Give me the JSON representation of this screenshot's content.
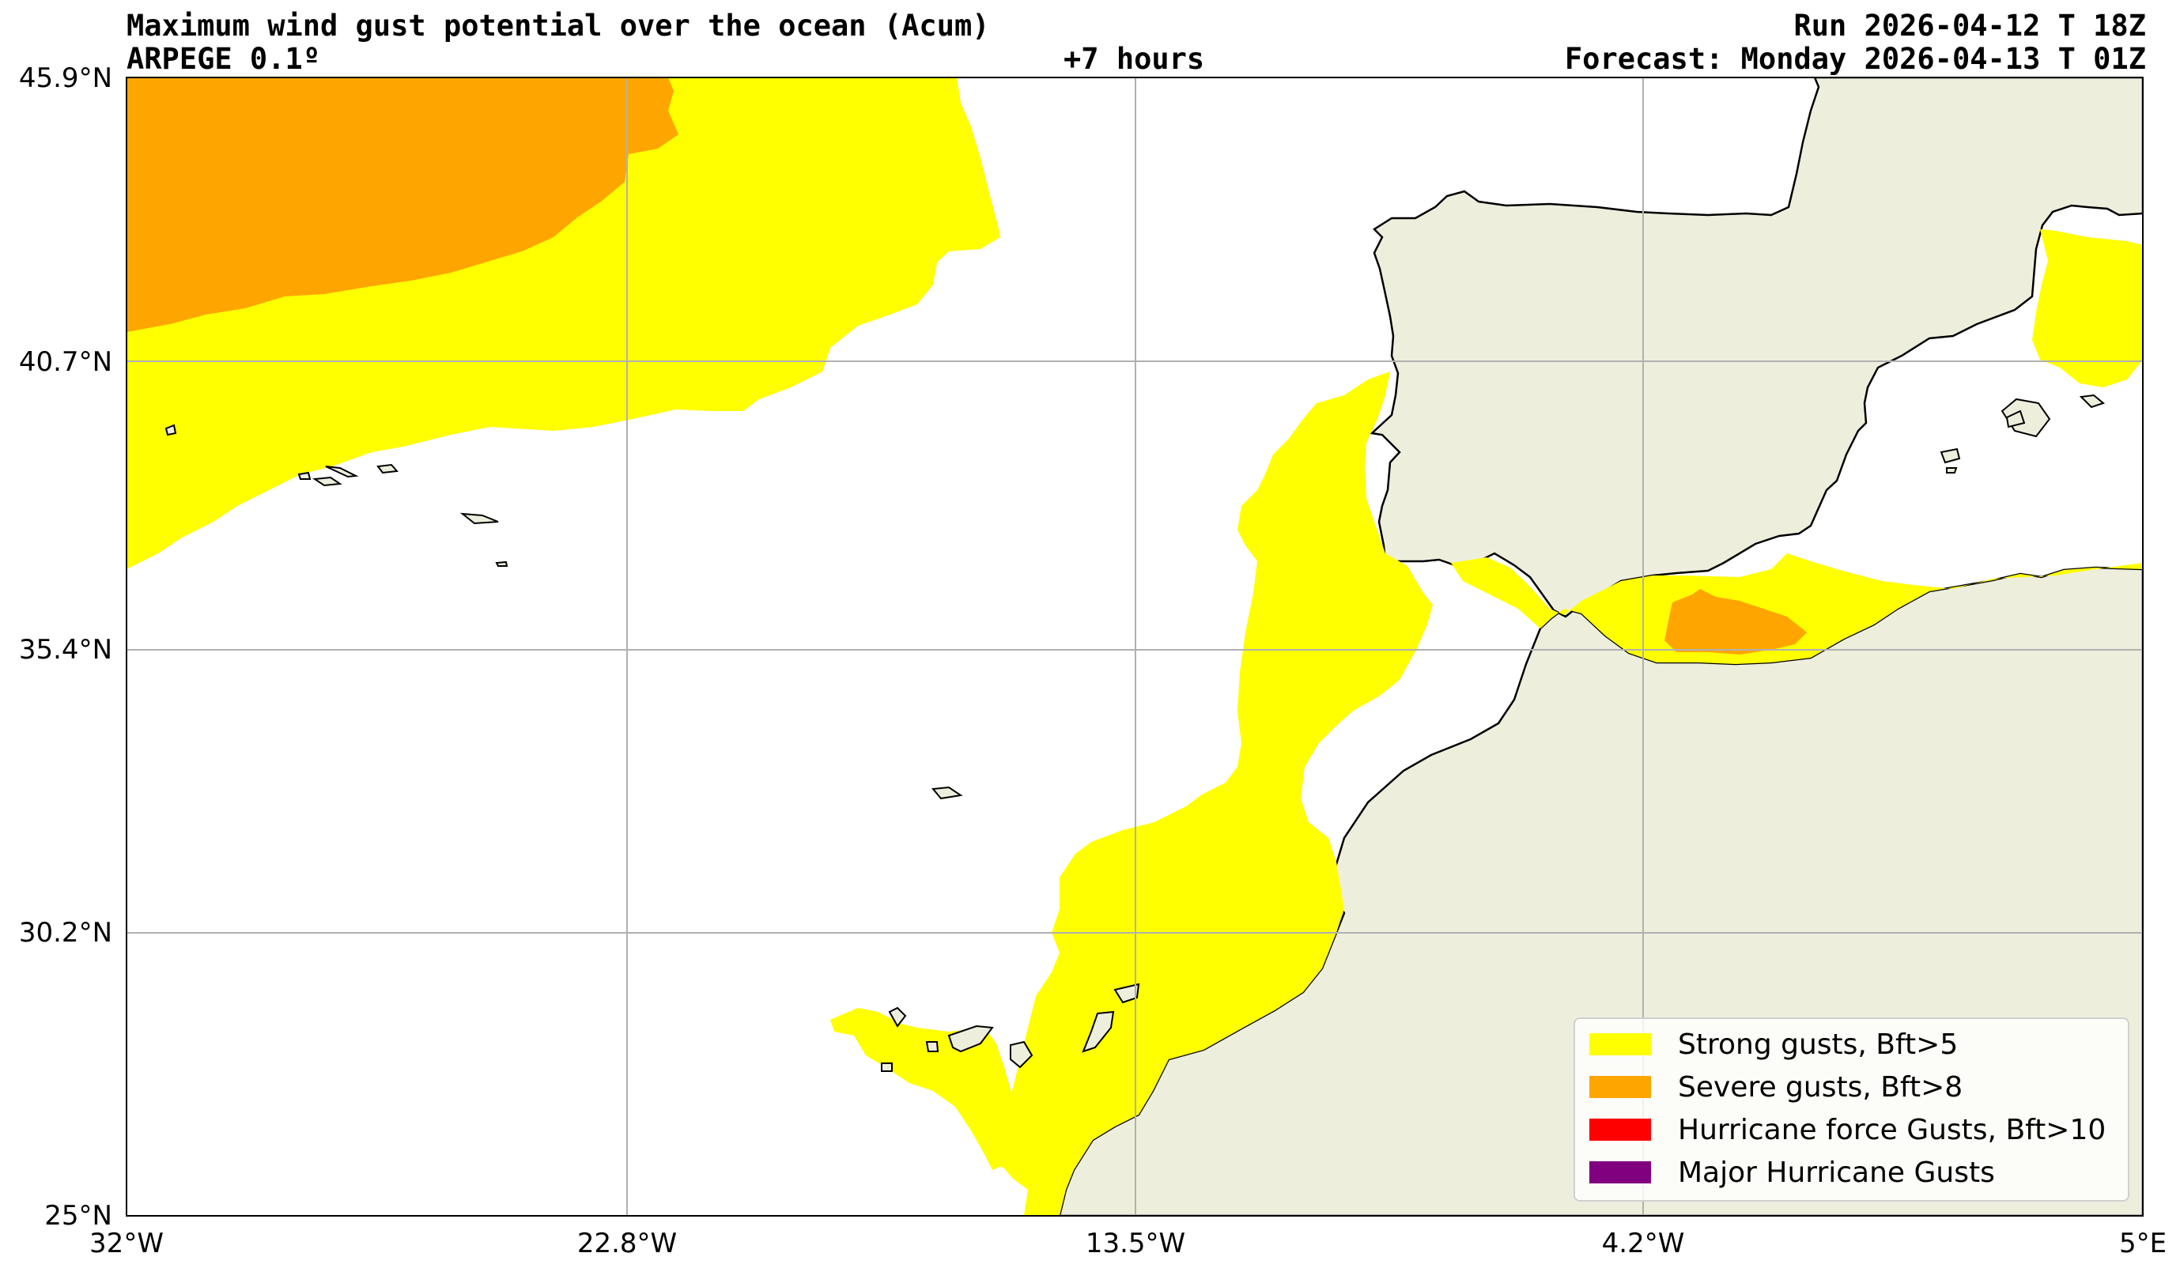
{
  "header": {
    "title": "Maximum wind gust potential over the ocean (Acum)",
    "model": "ARPEGE 0.1º",
    "step": "+7 hours",
    "run": "Run 2026-04-12 T 18Z",
    "forecast": "Forecast: Monday 2026-04-13 T 01Z"
  },
  "axes": {
    "lat_ticks": [
      "45.9°N",
      "40.7°N",
      "35.4°N",
      "30.2°N",
      "25°N"
    ],
    "lon_ticks": [
      "32°W",
      "22.8°W",
      "13.5°W",
      "4.2°W",
      "5°E"
    ],
    "lat_range": [
      25,
      45.9
    ],
    "lon_range": [
      -32,
      5
    ],
    "grid": true
  },
  "legend": {
    "items": [
      {
        "label": "Strong gusts, Bft>5",
        "color": "#ffff00"
      },
      {
        "label": "Severe gusts, Bft>8",
        "color": "#ffa500"
      },
      {
        "label": "Hurricane force Gusts, Bft>10",
        "color": "#ff0000"
      },
      {
        "label": "Major Hurricane Gusts",
        "color": "#800080"
      }
    ]
  },
  "colors": {
    "land": "#eeeedd",
    "ocean": "#ffffff",
    "strong": "#ffff00",
    "severe": "#ffa500",
    "grid": "#b0b0b0"
  }
}
